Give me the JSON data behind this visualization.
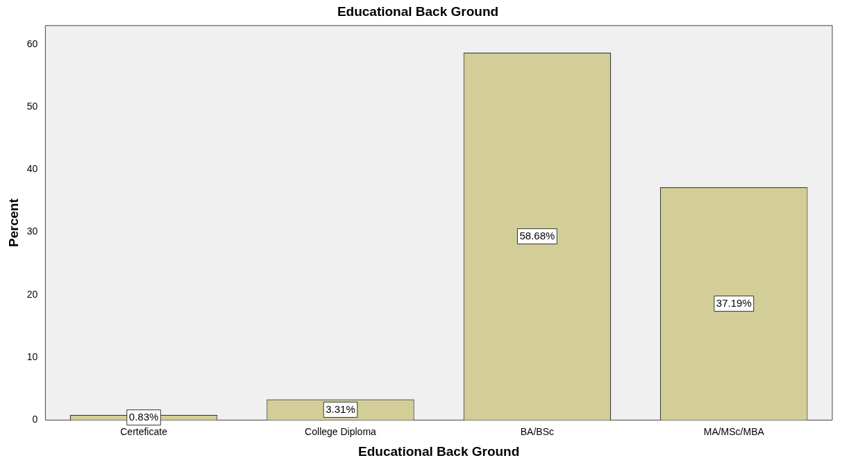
{
  "chart_data": {
    "type": "bar",
    "title": "Educational Back Ground",
    "xlabel": "Educational Back Ground",
    "ylabel": "Percent",
    "categories": [
      "Certeficate",
      "College Diploma",
      "BA/BSc",
      "MA/MSc/MBA"
    ],
    "values": [
      0.83,
      3.31,
      58.68,
      37.19
    ],
    "value_labels": [
      "0.83%",
      "3.31%",
      "58.68%",
      "37.19%"
    ],
    "color": "#d3ce97",
    "ylim": [
      0,
      63
    ],
    "yticks": [
      0,
      10,
      20,
      30,
      40,
      50,
      60
    ],
    "grid": false,
    "legend": false
  }
}
